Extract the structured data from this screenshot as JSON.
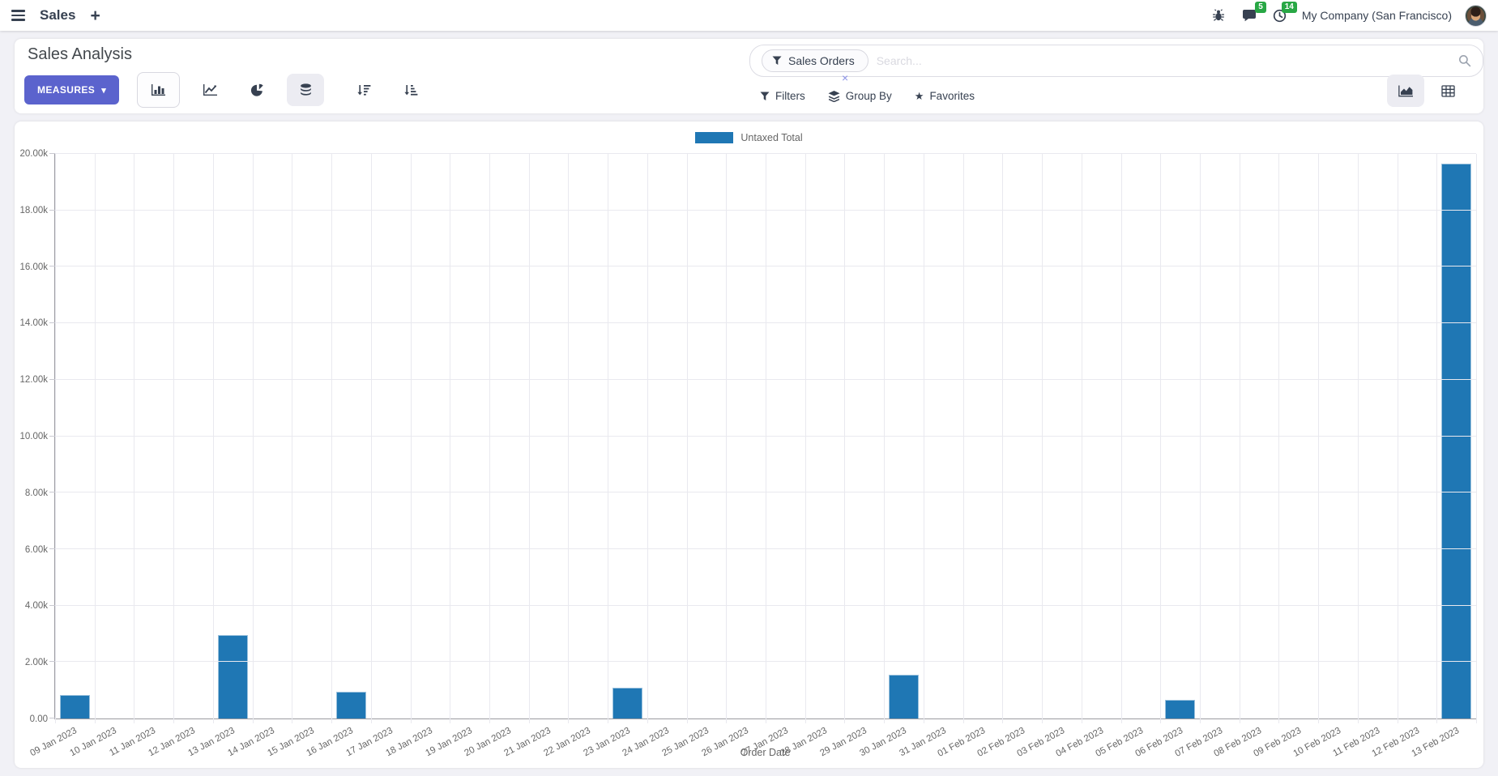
{
  "navbar": {
    "app_name": "Sales",
    "plus_label": "+",
    "messages_badge": "5",
    "activities_badge": "14",
    "company": "My Company (San Francisco)"
  },
  "control_panel": {
    "title": "Sales Analysis",
    "measures_label": "MEASURES",
    "measures_caret": "▾",
    "search": {
      "facet_label": "Sales Orders",
      "placeholder": "Search...",
      "remove_label": "×"
    },
    "filters_label": "Filters",
    "group_by_label": "Group By",
    "favorites_label": "Favorites",
    "favorites_star": "★"
  },
  "chart_data": {
    "type": "bar",
    "title": "",
    "xlabel": "Order Date",
    "ylabel": "",
    "ylim": [
      0,
      20000
    ],
    "grid": true,
    "legend_position": "top-center",
    "y_ticks": [
      "0.00",
      "2.00k",
      "4.00k",
      "6.00k",
      "8.00k",
      "10.00k",
      "12.00k",
      "14.00k",
      "16.00k",
      "18.00k",
      "20.00k"
    ],
    "categories": [
      "09 Jan 2023",
      "10 Jan 2023",
      "11 Jan 2023",
      "12 Jan 2023",
      "13 Jan 2023",
      "14 Jan 2023",
      "15 Jan 2023",
      "16 Jan 2023",
      "17 Jan 2023",
      "18 Jan 2023",
      "19 Jan 2023",
      "20 Jan 2023",
      "21 Jan 2023",
      "22 Jan 2023",
      "23 Jan 2023",
      "24 Jan 2023",
      "25 Jan 2023",
      "26 Jan 2023",
      "27 Jan 2023",
      "28 Jan 2023",
      "29 Jan 2023",
      "30 Jan 2023",
      "31 Jan 2023",
      "01 Feb 2023",
      "02 Feb 2023",
      "03 Feb 2023",
      "04 Feb 2023",
      "05 Feb 2023",
      "06 Feb 2023",
      "07 Feb 2023",
      "08 Feb 2023",
      "09 Feb 2023",
      "10 Feb 2023",
      "11 Feb 2023",
      "12 Feb 2023",
      "13 Feb 2023"
    ],
    "series": [
      {
        "name": "Untaxed Total",
        "color": "#1f77b4",
        "values": [
          830,
          0,
          0,
          0,
          2950,
          0,
          0,
          950,
          0,
          0,
          0,
          0,
          0,
          0,
          1090,
          0,
          0,
          0,
          0,
          0,
          0,
          1550,
          0,
          0,
          0,
          0,
          0,
          0,
          660,
          0,
          0,
          0,
          0,
          0,
          0,
          19650
        ]
      }
    ]
  },
  "colors": {
    "primary_button": "#5b63cd",
    "badge_green": "#28a745",
    "bar": "#1f77b4",
    "navbar_text": "#374151"
  }
}
